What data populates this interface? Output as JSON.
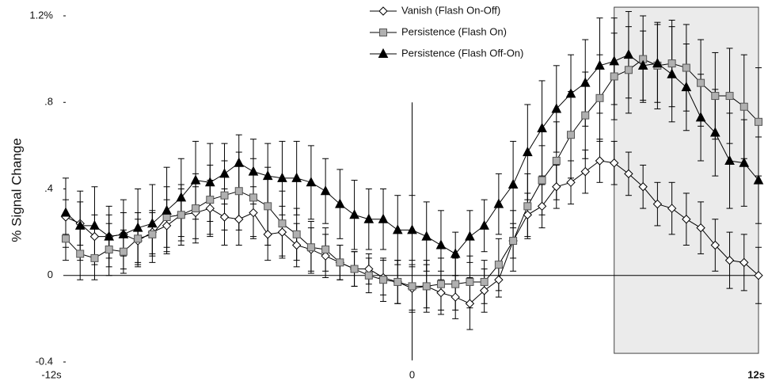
{
  "chart_data": {
    "type": "line",
    "y_label": "% Signal Change",
    "x": [
      -12,
      -11.5,
      -11,
      -10.5,
      -10,
      -9.5,
      -9,
      -8.5,
      -8,
      -7.5,
      -7,
      -6.5,
      -6,
      -5.5,
      -5,
      -4.5,
      -4,
      -3.5,
      -3,
      -2.5,
      -2,
      -1.5,
      -1,
      -0.5,
      0,
      0.5,
      1,
      1.5,
      2,
      2.5,
      3,
      3.5,
      4,
      4.5,
      5,
      5.5,
      6,
      6.5,
      7,
      7.5,
      8,
      8.5,
      9,
      9.5,
      10,
      10.5,
      11,
      11.5,
      12
    ],
    "series": [
      {
        "name": "Vanish (Flash On-Off)",
        "marker": "diamond",
        "color": "#ffffff",
        "values": [
          0.27,
          0.24,
          0.18,
          0.18,
          0.19,
          0.16,
          0.2,
          0.23,
          0.28,
          0.29,
          0.31,
          0.27,
          0.26,
          0.29,
          0.19,
          0.2,
          0.14,
          0.12,
          0.09,
          0.06,
          0.03,
          0.03,
          -0.01,
          -0.03,
          -0.06,
          -0.05,
          -0.08,
          -0.1,
          -0.13,
          -0.07,
          -0.02,
          0.16,
          0.28,
          0.32,
          0.41,
          0.43,
          0.48,
          0.53,
          0.52,
          0.47,
          0.41,
          0.33,
          0.31,
          0.26,
          0.22,
          0.14,
          0.07,
          0.06,
          0.0
        ],
        "errors": [
          0.08,
          0.1,
          0.1,
          0.1,
          0.1,
          0.1,
          0.1,
          0.12,
          0.12,
          0.12,
          0.13,
          0.13,
          0.12,
          0.12,
          0.12,
          0.12,
          0.1,
          0.1,
          0.1,
          0.08,
          0.08,
          0.07,
          0.08,
          0.1,
          0.1,
          0.1,
          0.1,
          0.1,
          0.12,
          0.1,
          0.08,
          0.08,
          0.1,
          0.1,
          0.1,
          0.1,
          0.1,
          0.1,
          0.1,
          0.1,
          0.1,
          0.1,
          0.12,
          0.12,
          0.12,
          0.12,
          0.13,
          0.13,
          0.13
        ]
      },
      {
        "name": "Persistence (Flash On)",
        "marker": "square",
        "color": "#b0b0b0",
        "values": [
          0.17,
          0.1,
          0.08,
          0.12,
          0.11,
          0.17,
          0.19,
          0.27,
          0.28,
          0.31,
          0.35,
          0.37,
          0.39,
          0.36,
          0.32,
          0.24,
          0.19,
          0.13,
          0.12,
          0.06,
          0.03,
          0.0,
          -0.02,
          -0.03,
          -0.05,
          -0.05,
          -0.04,
          -0.04,
          -0.03,
          -0.03,
          0.05,
          0.16,
          0.32,
          0.44,
          0.53,
          0.65,
          0.74,
          0.82,
          0.92,
          0.95,
          1.0,
          0.97,
          0.98,
          0.96,
          0.89,
          0.83,
          0.83,
          0.78,
          0.71
        ],
        "errors": [
          0.1,
          0.12,
          0.1,
          0.12,
          0.1,
          0.12,
          0.1,
          0.14,
          0.14,
          0.16,
          0.16,
          0.16,
          0.18,
          0.18,
          0.18,
          0.15,
          0.12,
          0.12,
          0.1,
          0.08,
          0.08,
          0.08,
          0.1,
          0.1,
          0.12,
          0.12,
          0.12,
          0.12,
          0.12,
          0.1,
          0.12,
          0.14,
          0.15,
          0.16,
          0.18,
          0.2,
          0.2,
          0.2,
          0.2,
          0.2,
          0.2,
          0.2,
          0.2,
          0.2,
          0.2,
          0.2,
          0.22,
          0.24,
          0.25
        ]
      },
      {
        "name": "Persistence (Flash Off-On)",
        "marker": "triangle",
        "color": "#000000",
        "values": [
          0.29,
          0.23,
          0.23,
          0.18,
          0.19,
          0.22,
          0.24,
          0.3,
          0.36,
          0.44,
          0.43,
          0.47,
          0.52,
          0.48,
          0.46,
          0.45,
          0.45,
          0.43,
          0.39,
          0.33,
          0.28,
          0.26,
          0.26,
          0.21,
          0.21,
          0.18,
          0.14,
          0.1,
          0.18,
          0.23,
          0.33,
          0.42,
          0.57,
          0.68,
          0.77,
          0.84,
          0.89,
          0.97,
          0.99,
          1.02,
          0.97,
          0.98,
          0.93,
          0.87,
          0.73,
          0.66,
          0.53,
          0.52,
          0.44
        ],
        "errors": [
          0.16,
          0.16,
          0.18,
          0.14,
          0.16,
          0.18,
          0.18,
          0.2,
          0.18,
          0.18,
          0.18,
          0.14,
          0.13,
          0.15,
          0.15,
          0.17,
          0.17,
          0.17,
          0.15,
          0.16,
          0.16,
          0.14,
          0.14,
          0.16,
          0.16,
          0.16,
          0.16,
          0.1,
          0.12,
          0.12,
          0.14,
          0.2,
          0.22,
          0.22,
          0.2,
          0.18,
          0.2,
          0.22,
          0.2,
          0.2,
          0.16,
          0.18,
          0.22,
          0.2,
          0.2,
          0.2,
          0.22,
          0.2,
          0.2
        ]
      }
    ],
    "shaded_region": {
      "x": [
        7,
        12
      ],
      "y": [
        -0.36,
        1.24
      ],
      "color": "#ebebeb"
    },
    "xlim": [
      -12,
      12
    ],
    "xticks": [
      {
        "value": -12,
        "label": "-12s"
      },
      0,
      {
        "value": 12,
        "label": "12s"
      }
    ],
    "ylim": [
      -0.4,
      1.2
    ],
    "yticks": [
      {
        "value": -0.4,
        "label": "-0.4"
      },
      0,
      {
        "value": 0.4,
        "label": ".4"
      },
      {
        "value": 0.8,
        "label": ".8"
      },
      {
        "value": 1.2,
        "label": "1.2%"
      }
    ],
    "legend": "top-center"
  }
}
